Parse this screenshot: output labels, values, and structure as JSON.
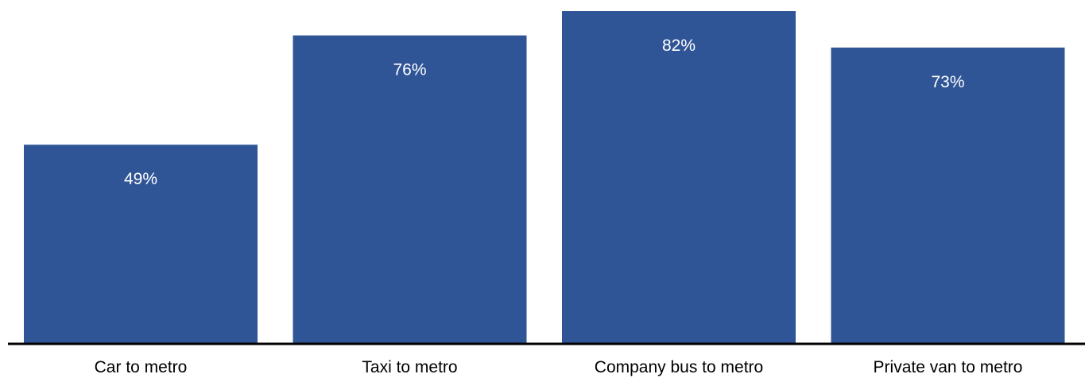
{
  "chart_data": {
    "type": "bar",
    "categories": [
      "Car to metro",
      "Taxi to metro",
      "Company bus to metro",
      "Private van to metro"
    ],
    "values": [
      49,
      76,
      82,
      73
    ],
    "value_labels": [
      "49%",
      "76%",
      "82%",
      "73%"
    ],
    "title": "",
    "xlabel": "",
    "ylabel": "",
    "ylim": [
      0,
      82
    ],
    "grid": false,
    "legend": "none",
    "colors": {
      "bar": "#305597",
      "value_label": "#ffffff",
      "axis": "#000000",
      "category_label": "#000000"
    }
  }
}
